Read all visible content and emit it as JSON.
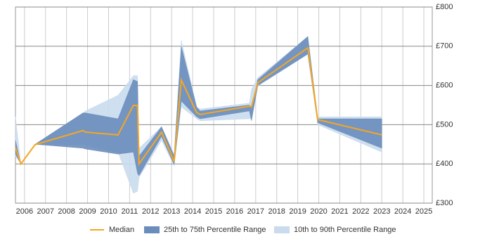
{
  "chart_data": {
    "type": "band-line",
    "x": [
      2005.57,
      2005.83,
      2006.5,
      2008.78,
      2008.9,
      2010.45,
      2011.18,
      2011.38,
      2011.45,
      2012.52,
      2013.12,
      2013.46,
      2014.19,
      2014.36,
      2016.7,
      2016.8,
      2017.1,
      2019.48,
      2019.95,
      2023.0
    ],
    "series": [
      {
        "name": "10th to 90th Percentile Range",
        "color": "#c9dbed",
        "high": [
          520,
          400,
          450,
          530,
          535,
          575,
          625,
          625,
          440,
          495,
          425,
          715,
          545,
          540,
          555,
          590,
          620,
          725,
          520,
          520
        ],
        "low": [
          420,
          400,
          450,
          450,
          448,
          430,
          325,
          330,
          365,
          460,
          395,
          545,
          515,
          510,
          515,
          515,
          598,
          680,
          500,
          430
        ]
      },
      {
        "name": "25th to 75th Percentile Range",
        "color": "#6a8dbb",
        "high": [
          460,
          400,
          450,
          530,
          530,
          515,
          615,
          610,
          420,
          495,
          420,
          700,
          545,
          535,
          550,
          545,
          615,
          725,
          515,
          515
        ],
        "low": [
          425,
          400,
          450,
          440,
          438,
          425,
          430,
          375,
          370,
          470,
          398,
          560,
          520,
          515,
          535,
          510,
          600,
          680,
          505,
          440
        ]
      },
      {
        "name": "Median",
        "color": "#f5a623",
        "values": [
          442,
          400,
          449,
          485,
          481,
          474,
          549,
          549,
          400,
          481,
          406,
          614,
          531,
          526,
          547,
          546,
          607,
          696,
          513,
          474
        ]
      }
    ],
    "xlim": [
      2005.57,
      2025.4
    ],
    "xticks": [
      2006,
      2007,
      2008,
      2009,
      2010,
      2011,
      2012,
      2013,
      2014,
      2015,
      2016,
      2017,
      2018,
      2019,
      2020,
      2021,
      2022,
      2023,
      2024,
      2025
    ],
    "ylim": [
      300,
      800
    ],
    "yticks": [
      {
        "value": 300,
        "label": "£300"
      },
      {
        "value": 400,
        "label": "£400"
      },
      {
        "value": 500,
        "label": "£500"
      },
      {
        "value": 600,
        "label": "£600"
      },
      {
        "value": 700,
        "label": "£700"
      },
      {
        "value": 800,
        "label": "£800"
      }
    ],
    "grid": true,
    "legend": "bottom"
  }
}
